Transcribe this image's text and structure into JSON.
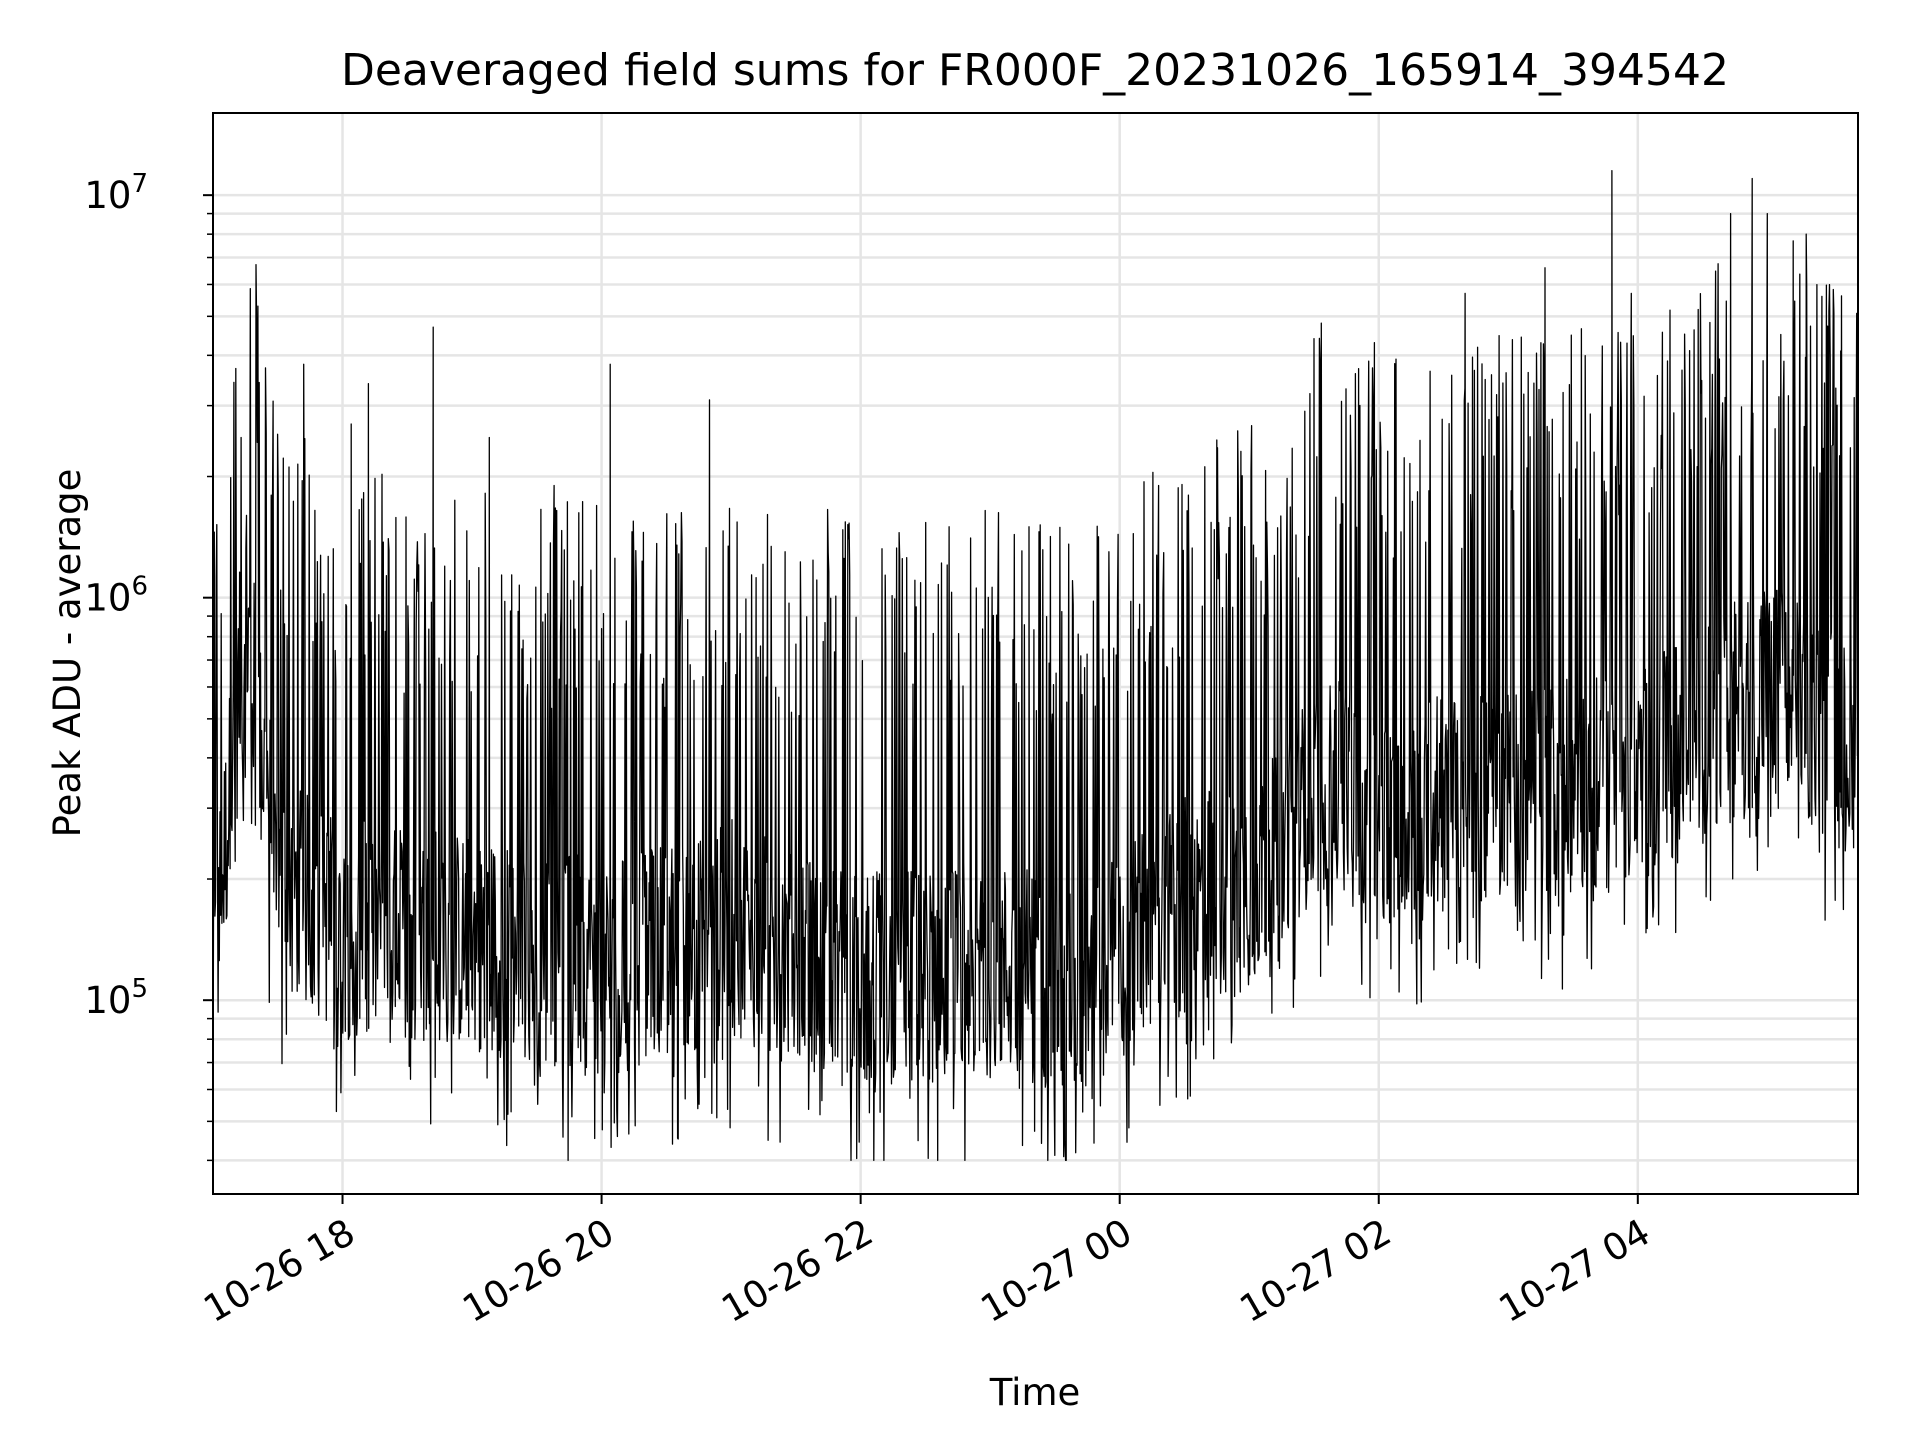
{
  "chart_data": {
    "type": "line",
    "title": "Deaveraged field sums for FR000F_20231026_165914_394542",
    "xlabel": "Time",
    "ylabel": "Peak ADU - average",
    "x_start": "2023-10-26 17:00",
    "x_end": "2023-10-27 05:42",
    "y_scale": "log",
    "ylim": [
      33000,
      16000000
    ],
    "y_ticks": [
      {
        "value": 100000,
        "base": "10",
        "exp": "5"
      },
      {
        "value": 1000000,
        "base": "10",
        "exp": "6"
      },
      {
        "value": 10000000,
        "base": "10",
        "exp": "7"
      }
    ],
    "x_ticks": [
      {
        "label": "10-26 18",
        "time": "2023-10-26 18:00"
      },
      {
        "label": "10-26 20",
        "time": "2023-10-26 20:00"
      },
      {
        "label": "10-26 22",
        "time": "2023-10-26 22:00"
      },
      {
        "label": "10-27 00",
        "time": "2023-10-27 00:00"
      },
      {
        "label": "10-27 02",
        "time": "2023-10-27 02:00"
      },
      {
        "label": "10-27 04",
        "time": "2023-10-27 04:00"
      }
    ],
    "grid": true,
    "line_color": "#000000",
    "grid_color": "#e5e5e5",
    "baseline_profile": [
      {
        "time": "2023-10-26 17:00",
        "value": 110000
      },
      {
        "time": "2023-10-26 17:15",
        "value": 900000
      },
      {
        "time": "2023-10-26 17:30",
        "value": 200000
      },
      {
        "time": "2023-10-26 18:00",
        "value": 150000
      },
      {
        "time": "2023-10-26 19:00",
        "value": 140000
      },
      {
        "time": "2023-10-26 20:00",
        "value": 120000
      },
      {
        "time": "2023-10-26 21:00",
        "value": 150000
      },
      {
        "time": "2023-10-26 22:00",
        "value": 110000
      },
      {
        "time": "2023-10-26 23:00",
        "value": 120000
      },
      {
        "time": "2023-10-26 23:45",
        "value": 110000
      },
      {
        "time": "2023-10-27 00:30",
        "value": 170000
      },
      {
        "time": "2023-10-27 01:15",
        "value": 220000
      },
      {
        "time": "2023-10-27 01:30",
        "value": 350000
      },
      {
        "time": "2023-10-27 02:00",
        "value": 300000
      },
      {
        "time": "2023-10-27 03:00",
        "value": 320000
      },
      {
        "time": "2023-10-27 04:00",
        "value": 350000
      },
      {
        "time": "2023-10-27 05:00",
        "value": 600000
      },
      {
        "time": "2023-10-27 05:42",
        "value": 400000
      }
    ],
    "peaks": [
      {
        "time": "2023-10-26 17:13",
        "value": 2500000
      },
      {
        "time": "2023-10-26 17:42",
        "value": 3800000
      },
      {
        "time": "2023-10-26 18:04",
        "value": 2700000
      },
      {
        "time": "2023-10-26 18:12",
        "value": 3400000
      },
      {
        "time": "2023-10-26 18:42",
        "value": 4700000
      },
      {
        "time": "2023-10-26 19:08",
        "value": 2500000
      },
      {
        "time": "2023-10-26 19:38",
        "value": 1900000
      },
      {
        "time": "2023-10-26 20:04",
        "value": 3800000
      },
      {
        "time": "2023-10-26 20:50",
        "value": 3100000
      },
      {
        "time": "2023-10-26 21:25",
        "value": 1300000
      },
      {
        "time": "2023-10-26 23:18",
        "value": 1500000
      },
      {
        "time": "2023-10-26 23:55",
        "value": 1300000
      },
      {
        "time": "2023-10-27 00:18",
        "value": 1900000
      },
      {
        "time": "2023-10-27 00:45",
        "value": 1600000
      },
      {
        "time": "2023-10-27 01:30",
        "value": 4400000
      },
      {
        "time": "2023-10-27 01:58",
        "value": 4300000
      },
      {
        "time": "2023-10-27 02:40",
        "value": 5700000
      },
      {
        "time": "2023-10-27 03:17",
        "value": 6600000
      },
      {
        "time": "2023-10-27 03:48",
        "value": 11500000
      },
      {
        "time": "2023-10-27 03:57",
        "value": 5700000
      },
      {
        "time": "2023-10-27 04:28",
        "value": 5200000
      },
      {
        "time": "2023-10-27 04:43",
        "value": 9000000
      },
      {
        "time": "2023-10-27 04:53",
        "value": 11000000
      },
      {
        "time": "2023-10-27 05:00",
        "value": 9000000
      },
      {
        "time": "2023-10-27 05:12",
        "value": 7700000
      },
      {
        "time": "2023-10-27 05:18",
        "value": 8000000
      },
      {
        "time": "2023-10-27 05:34",
        "value": 4100000
      }
    ],
    "series_extent": {
      "min": 40000,
      "max": 11500000
    }
  }
}
